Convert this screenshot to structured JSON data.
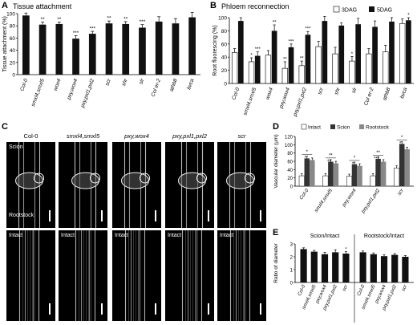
{
  "panels": {
    "A": {
      "label": "A",
      "title": "Tissue attachment"
    },
    "B": {
      "label": "B",
      "title": "Phloem reconnection"
    },
    "C": {
      "label": "C"
    },
    "D": {
      "label": "D"
    },
    "E": {
      "label": "E"
    }
  },
  "micrographs": {
    "columns": [
      "Col-0",
      "smxl4,smxl5",
      "pxy,wox4",
      "pxy,pxl1,pxl2",
      "scr"
    ],
    "row1_labels": {
      "top": "Scion",
      "bottom": "Rootstock"
    },
    "row2_label": "Intact"
  },
  "chart_data": [
    {
      "id": "A",
      "type": "bar",
      "title": "Tissue attachment",
      "ylabel": "Tissue attachment (%)",
      "ylim": [
        0,
        100
      ],
      "yticks": [
        0,
        20,
        40,
        60,
        80,
        100
      ],
      "categories": [
        "Col-0",
        "smxl4,smxl5",
        "wox4",
        "pxy,wox4",
        "pxy,pxl1,pxl2",
        "scr",
        "shr",
        "slr",
        "Col er-2",
        "athb8",
        "bvca"
      ],
      "values": [
        97,
        82,
        83,
        59,
        67,
        84,
        83,
        77,
        87,
        84,
        94
      ],
      "errors": [
        4,
        4,
        3,
        5,
        4,
        4,
        4,
        5,
        8,
        8,
        8
      ],
      "annotations": [
        "",
        "**",
        "**",
        "***",
        "***",
        "**",
        "**",
        "***",
        "",
        "",
        ""
      ]
    },
    {
      "id": "B",
      "type": "bar",
      "title": "Phloem reconnection",
      "ylabel": "Root fluorescing (%)",
      "ylim": [
        0,
        100
      ],
      "yticks": [
        0,
        20,
        40,
        60,
        80,
        100
      ],
      "categories": [
        "Col-0",
        "smxl4,smxl5",
        "wox4",
        "pxy,wox4",
        "pxy,pxl1,pxl2",
        "scr",
        "shr",
        "slr",
        "Col er-2",
        "athb8",
        "bvca"
      ],
      "legend": [
        "3DAG",
        "5DAG"
      ],
      "series": [
        {
          "name": "3DAG",
          "values": [
            47,
            33,
            43,
            23,
            27,
            56,
            45,
            34,
            45,
            48,
            91
          ],
          "errors": [
            6,
            6,
            7,
            10,
            7,
            8,
            10,
            7,
            8,
            10,
            7
          ]
        },
        {
          "name": "5DAG",
          "values": [
            95,
            42,
            80,
            55,
            74,
            95,
            88,
            90,
            86,
            94,
            96
          ],
          "errors": [
            5,
            6,
            9,
            5,
            5,
            7,
            4,
            9,
            9,
            6,
            4
          ]
        }
      ],
      "annotations_3dag": [
        "",
        "*",
        "",
        "**",
        "**",
        "",
        "",
        "*",
        "",
        "",
        ""
      ],
      "annotations_5dag": [
        "",
        "***",
        "**",
        "***",
        "***",
        "",
        "",
        "",
        "",
        "",
        "*"
      ]
    },
    {
      "id": "D",
      "type": "bar",
      "ylabel": "Vascular diameter (µm)",
      "ylim": [
        0,
        120
      ],
      "yticks": [
        0,
        20,
        40,
        60,
        80,
        100,
        120
      ],
      "legend": [
        "Intact",
        "Scion",
        "Rootstock"
      ],
      "categories": [
        "Col-0",
        "smxl4,smxl5",
        "pxy,wox4",
        "pxy,pxl1,pxl2",
        "scr"
      ],
      "series": [
        {
          "name": "Intact",
          "values": [
            25,
            25,
            24,
            25,
            44
          ]
        },
        {
          "name": "Scion",
          "values": [
            67,
            59,
            53,
            66,
            102
          ]
        },
        {
          "name": "Rootstock",
          "values": [
            63,
            55,
            49,
            59,
            89
          ]
        }
      ],
      "annotations": [
        "*",
        "**",
        "*",
        "**",
        "*"
      ],
      "annotations_2": [
        "*",
        "**",
        "*",
        "***",
        "*"
      ]
    },
    {
      "id": "E",
      "type": "bar",
      "ylabel": "Ratio of diameter",
      "ylim": [
        0,
        3
      ],
      "yticks": [
        0,
        1,
        2,
        3
      ],
      "groups": [
        "Scion/Intact",
        "Rootstock/Intact"
      ],
      "categories": [
        "Col-0",
        "smxl4,smxl5",
        "pxy,wox4",
        "pxy,pxl1,pxl2",
        "scr"
      ],
      "series": [
        {
          "name": "Scion/Intact",
          "values": [
            2.6,
            2.4,
            2.2,
            2.35,
            2.25
          ],
          "errors": [
            0.1,
            0.1,
            0.15,
            0.2,
            0.15
          ]
        },
        {
          "name": "Rootstock/Intact",
          "values": [
            2.35,
            2.2,
            2.05,
            2.15,
            2.0
          ],
          "errors": [
            0.1,
            0.1,
            0.1,
            0.1,
            0.1
          ]
        }
      ],
      "annotations": [
        "",
        "",
        "",
        "",
        "*"
      ]
    }
  ],
  "colors": {
    "bar": "#111111",
    "open_bar": "#ffffff",
    "scion": "#333333",
    "rootstock": "#888888",
    "intact": "#ffffff"
  }
}
